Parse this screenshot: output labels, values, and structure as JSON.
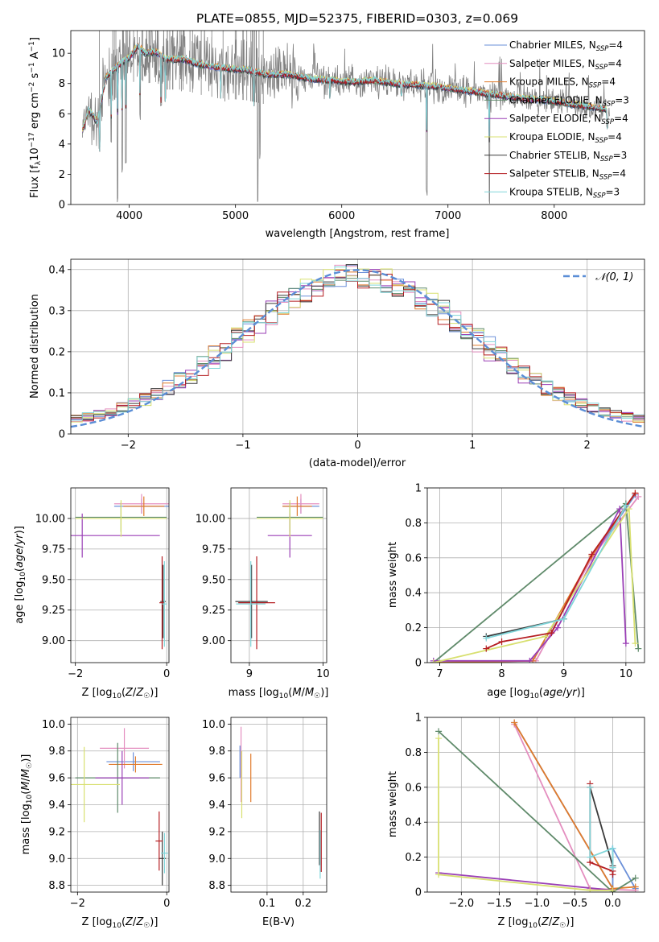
{
  "chart_data": [
    {
      "id": "spectrum",
      "type": "line",
      "title": "PLATE=0855, MJD=52375, FIBERID=0303, z=0.069",
      "xlabel": "wavelength [Angstrom, rest frame]",
      "ylabel_parts": [
        "Flux [f",
        "λ",
        "10",
        "−17",
        " erg cm",
        "−2",
        " s",
        "−1",
        " A",
        "−1",
        "]"
      ],
      "xlim": [
        3450,
        8850
      ],
      "ylim": [
        0,
        11.5
      ],
      "xticks": [
        4000,
        5000,
        6000,
        7000,
        8000
      ],
      "yticks": [
        0,
        2,
        4,
        6,
        8,
        10
      ],
      "grid": false,
      "legend_position": "right",
      "data_color": "#808080",
      "anchor_x": [
        3560,
        3620,
        3700,
        3780,
        3850,
        3930,
        4000,
        4080,
        4150,
        4250,
        4350,
        4500,
        4700,
        4900,
        5100,
        5300,
        5500,
        5700,
        5900,
        6100,
        6300,
        6500,
        6700,
        6900,
        7100,
        7300,
        7500,
        7700,
        7900,
        8100,
        8300,
        8500
      ],
      "anchor_y": [
        4.9,
        6.3,
        5.4,
        8.4,
        8.9,
        9.4,
        9.7,
        10.5,
        10.0,
        10.1,
        9.6,
        9.6,
        9.2,
        9.0,
        8.9,
        8.6,
        8.6,
        8.3,
        8.2,
        8.1,
        8.2,
        8.0,
        7.9,
        7.8,
        7.6,
        7.4,
        7.2,
        7.0,
        6.9,
        6.7,
        6.5,
        6.3
      ],
      "absorption_lines": [
        [
          3720,
          3.5
        ],
        [
          3830,
          4.0
        ],
        [
          3890,
          0.0
        ],
        [
          3933,
          2.0
        ],
        [
          3968,
          2.5
        ],
        [
          4101,
          5.5
        ],
        [
          4300,
          6.5
        ],
        [
          4340,
          6.8
        ],
        [
          4861,
          7.0
        ],
        [
          5175,
          6.5
        ],
        [
          5890,
          7.0
        ],
        [
          6563,
          7.2
        ],
        [
          6800,
          0.5
        ],
        [
          7390,
          0.0
        ],
        [
          8500,
          5.0
        ]
      ],
      "spikes": [
        [
          5210,
          0.0
        ],
        [
          5230,
          3.0
        ]
      ],
      "series": [
        {
          "name": "Chabrier MILES, N",
          "sub": "SSP",
          "suffix": "=4",
          "color": "#6a8fd8"
        },
        {
          "name": "Salpeter MILES, N",
          "sub": "SSP",
          "suffix": "=4",
          "color": "#e48ebf"
        },
        {
          "name": "Kroupa MILES, N",
          "sub": "SSP",
          "suffix": "=4",
          "color": "#e07b2c"
        },
        {
          "name": "Chabrier ELODIE, N",
          "sub": "SSP",
          "suffix": "=3",
          "color": "#5f8a6a"
        },
        {
          "name": "Salpeter ELODIE, N",
          "sub": "SSP",
          "suffix": "=4",
          "color": "#9a3fb6"
        },
        {
          "name": "Kroupa ELODIE, N",
          "sub": "SSP",
          "suffix": "=4",
          "color": "#d8e070"
        },
        {
          "name": "Chabrier STELIB, N",
          "sub": "SSP",
          "suffix": "=3",
          "color": "#3a3a3a"
        },
        {
          "name": "Salpeter STELIB, N",
          "sub": "SSP",
          "suffix": "=4",
          "color": "#b51e22"
        },
        {
          "name": "Kroupa STELIB, N",
          "sub": "SSP",
          "suffix": "=3",
          "color": "#80d6da"
        }
      ]
    },
    {
      "id": "residuals",
      "type": "line",
      "xlabel": "(data-model)/error",
      "ylabel": "Normed distribution",
      "xlim": [
        -2.5,
        2.5
      ],
      "ylim": [
        0,
        0.425
      ],
      "xticks": [
        -2,
        -1,
        0,
        1,
        2
      ],
      "yticks": [
        0.0,
        0.1,
        0.2,
        0.3,
        0.4
      ],
      "grid": true,
      "legend_position": "top-right",
      "legend_label": "𝒩(0, 1)",
      "gauss_color": "#5b8ed6",
      "bin_width": 0.1,
      "hist_colors": [
        "#6a8fd8",
        "#e48ebf",
        "#e07b2c",
        "#5f8a6a",
        "#9a3fb6",
        "#d8e070",
        "#3a3a3a",
        "#b51e22",
        "#80d6da"
      ]
    },
    {
      "id": "age-z",
      "type": "scatter",
      "xlabel": "Z [log10(Z/Z☉)]",
      "ylabel": "age  [log10(age/yr)]",
      "xlim": [
        -2.1,
        0.05
      ],
      "ylim": [
        8.82,
        10.25
      ],
      "xticks": [
        -2,
        0
      ],
      "yticks": [
        9.0,
        9.25,
        9.5,
        9.75,
        10.0
      ],
      "ytick_labels": [
        "9.00",
        "9.25",
        "9.50",
        "9.75",
        "10.00"
      ],
      "grid": true,
      "points": [
        {
          "c": "#6a8fd8",
          "x": -0.55,
          "xe": 0.6,
          "y": 10.1,
          "ye": 0.06
        },
        {
          "c": "#e48ebf",
          "x": -0.55,
          "xe": 0.6,
          "y": 10.12,
          "ye": 0.08
        },
        {
          "c": "#e07b2c",
          "x": -0.5,
          "xe": 0.45,
          "y": 10.1,
          "ye": 0.08
        },
        {
          "c": "#5f8a6a",
          "x": -1.0,
          "xe": 1.0,
          "y": 10.01,
          "ye": 0.12
        },
        {
          "c": "#9a3fb6",
          "x": -1.85,
          "xe": 1.7,
          "y": 9.86,
          "ye": 0.18
        },
        {
          "c": "#d8e070",
          "x": -1.0,
          "xe": 1.0,
          "y": 10.0,
          "ye": 0.15
        },
        {
          "c": "#3a3a3a",
          "x": -0.08,
          "xe": 0.06,
          "y": 9.32,
          "ye": 0.3
        },
        {
          "c": "#b51e22",
          "x": -0.1,
          "xe": 0.06,
          "y": 9.31,
          "ye": 0.38
        },
        {
          "c": "#80d6da",
          "x": -0.05,
          "xe": 0.05,
          "y": 9.3,
          "ye": 0.35
        }
      ]
    },
    {
      "id": "age-mass",
      "type": "scatter",
      "xlabel": "mass [log10(M/M☉)]",
      "xlim": [
        8.75,
        10.05
      ],
      "ylim": [
        8.82,
        10.25
      ],
      "xticks": [
        9,
        10
      ],
      "yticks": [
        9.0,
        9.25,
        9.5,
        9.75,
        10.0
      ],
      "ytick_labels": [
        "9.00",
        "9.25",
        "9.50",
        "9.75",
        "10.00"
      ],
      "grid": true,
      "points": [
        {
          "c": "#6a8fd8",
          "x": 9.7,
          "xe": 0.25,
          "y": 10.1,
          "ye": 0.06
        },
        {
          "c": "#e48ebf",
          "x": 9.7,
          "xe": 0.25,
          "y": 10.12,
          "ye": 0.08
        },
        {
          "c": "#e07b2c",
          "x": 9.65,
          "xe": 0.2,
          "y": 10.1,
          "ye": 0.08
        },
        {
          "c": "#5f8a6a",
          "x": 9.55,
          "xe": 0.45,
          "y": 10.01,
          "ye": 0.12
        },
        {
          "c": "#9a3fb6",
          "x": 9.55,
          "xe": 0.3,
          "y": 9.86,
          "ye": 0.18
        },
        {
          "c": "#d8e070",
          "x": 9.55,
          "xe": 0.45,
          "y": 10.0,
          "ye": 0.15
        },
        {
          "c": "#3a3a3a",
          "x": 9.03,
          "xe": 0.22,
          "y": 9.32,
          "ye": 0.3
        },
        {
          "c": "#b51e22",
          "x": 9.1,
          "xe": 0.25,
          "y": 9.31,
          "ye": 0.38
        },
        {
          "c": "#80d6da",
          "x": 9.02,
          "xe": 0.2,
          "y": 9.3,
          "ye": 0.35
        }
      ]
    },
    {
      "id": "weight-age",
      "type": "line",
      "xlabel": "age  [log10(age/yr)]",
      "ylabel": "mass weight",
      "xlim": [
        6.8,
        10.3
      ],
      "ylim": [
        0,
        1.0
      ],
      "xticks": [
        7,
        8,
        9,
        10
      ],
      "yticks": [
        0.0,
        0.2,
        0.4,
        0.6,
        0.8,
        1.0
      ],
      "grid": true,
      "series": [
        {
          "c": "#6a8fd8",
          "x": [
            6.9,
            8.5,
            9.45,
            10.15
          ],
          "y": [
            0.0,
            0.01,
            0.6,
            0.96
          ]
        },
        {
          "c": "#e48ebf",
          "x": [
            6.9,
            8.55,
            9.45,
            10.2
          ],
          "y": [
            0.0,
            0.01,
            0.6,
            0.95
          ]
        },
        {
          "c": "#e07b2c",
          "x": [
            6.9,
            8.5,
            9.45,
            10.15
          ],
          "y": [
            0.0,
            0.01,
            0.61,
            0.97
          ]
        },
        {
          "c": "#5f8a6a",
          "x": [
            6.9,
            10.0,
            10.2
          ],
          "y": [
            0.0,
            0.91,
            0.08
          ]
        },
        {
          "c": "#9a3fb6",
          "x": [
            6.9,
            8.45,
            8.9,
            9.9,
            10.0
          ],
          "y": [
            0.01,
            0.01,
            0.2,
            0.88,
            0.11
          ]
        },
        {
          "c": "#d8e070",
          "x": [
            6.9,
            8.7,
            10.05,
            10.15
          ],
          "y": [
            0.0,
            0.15,
            0.88,
            0.11
          ]
        },
        {
          "c": "#3a3a3a",
          "x": [
            7.75,
            9.0
          ],
          "y": [
            0.15,
            0.25
          ]
        },
        {
          "c": "#b51e22",
          "x": [
            7.75,
            8.0,
            8.8,
            9.45,
            10.15
          ],
          "y": [
            0.08,
            0.12,
            0.17,
            0.62,
            0.97
          ]
        },
        {
          "c": "#80d6da",
          "x": [
            7.75,
            9.0,
            10.0
          ],
          "y": [
            0.14,
            0.25,
            0.9
          ]
        }
      ]
    },
    {
      "id": "mass-z",
      "type": "scatter",
      "xlabel": "Z [log10(Z/Z☉)]",
      "ylabel": "mass [log10(M/M☉)]",
      "xlim": [
        -2.15,
        0.05
      ],
      "ylim": [
        8.75,
        10.05
      ],
      "xticks": [
        -2,
        0
      ],
      "yticks": [
        8.8,
        9.0,
        9.2,
        9.4,
        9.6,
        9.8,
        10.0
      ],
      "ytick_labels": [
        "8.8",
        "9.0",
        "9.2",
        "9.4",
        "9.6",
        "9.8",
        "10.0"
      ],
      "grid": true,
      "points": [
        {
          "c": "#6a8fd8",
          "x": -0.75,
          "xe": 0.6,
          "y": 9.72,
          "ye": 0.07
        },
        {
          "c": "#e48ebf",
          "x": -0.95,
          "xe": 0.55,
          "y": 9.82,
          "ye": 0.15
        },
        {
          "c": "#e07b2c",
          "x": -0.7,
          "xe": 0.6,
          "y": 9.7,
          "ye": 0.06
        },
        {
          "c": "#5f8a6a",
          "x": -1.1,
          "xe": 0.95,
          "y": 9.6,
          "ye": 0.26
        },
        {
          "c": "#9a3fb6",
          "x": -1.0,
          "xe": 0.6,
          "y": 9.6,
          "ye": 0.2
        },
        {
          "c": "#d8e070",
          "x": -1.85,
          "xe": 0.8,
          "y": 9.55,
          "ye": 0.28
        },
        {
          "c": "#3a3a3a",
          "x": -0.1,
          "xe": 0.08,
          "y": 9.0,
          "ye": 0.2
        },
        {
          "c": "#b51e22",
          "x": -0.17,
          "xe": 0.08,
          "y": 9.13,
          "ye": 0.22
        },
        {
          "c": "#80d6da",
          "x": -0.05,
          "xe": 0.08,
          "y": 9.04,
          "ye": 0.15
        }
      ]
    },
    {
      "id": "mass-ebv",
      "type": "scatter",
      "xlabel": "E(B-V)",
      "xlim": [
        0.0,
        0.265
      ],
      "ylim": [
        8.75,
        10.05
      ],
      "xticks": [
        0.1,
        0.2
      ],
      "yticks": [
        8.8,
        9.0,
        9.2,
        9.4,
        9.6,
        9.8,
        10.0
      ],
      "ytick_labels": [
        "8.8",
        "9.0",
        "9.2",
        "9.4",
        "9.6",
        "9.8",
        "10.0"
      ],
      "grid": true,
      "points": [
        {
          "c": "#6a8fd8",
          "x": 0.025,
          "xe": 0,
          "y": 9.72,
          "ye": 0.12
        },
        {
          "c": "#e48ebf",
          "x": 0.028,
          "xe": 0,
          "y": 9.7,
          "ye": 0.28
        },
        {
          "c": "#e07b2c",
          "x": 0.055,
          "xe": 0,
          "y": 9.6,
          "ye": 0.18
        },
        {
          "c": "#d8e070",
          "x": 0.03,
          "xe": 0,
          "y": 9.55,
          "ye": 0.25
        },
        {
          "c": "#3a3a3a",
          "x": 0.245,
          "xe": 0,
          "y": 9.15,
          "ye": 0.2
        },
        {
          "c": "#b51e22",
          "x": 0.25,
          "xe": 0,
          "y": 9.12,
          "ye": 0.22
        },
        {
          "c": "#80d6da",
          "x": 0.247,
          "xe": 0,
          "y": 9.03,
          "ye": 0.18
        }
      ]
    },
    {
      "id": "weight-z",
      "type": "line",
      "xlabel": "Z [log10(Z/Z☉)]",
      "ylabel": "mass weight",
      "xlim": [
        -2.45,
        0.42
      ],
      "ylim": [
        0,
        1.0
      ],
      "xticks": [
        -2.0,
        -1.5,
        -1.0,
        -0.5,
        0.0
      ],
      "xtick_labels": [
        "−2.0",
        "−1.5",
        "−1.0",
        "−0.5",
        "0.0"
      ],
      "yticks": [
        0.0,
        0.2,
        0.4,
        0.6,
        0.8,
        1.0
      ],
      "grid": true,
      "series": [
        {
          "c": "#6a8fd8",
          "x": [
            -1.3,
            0.0,
            0.0,
            0.3
          ],
          "y": [
            0.97,
            0.02,
            0.25,
            0.02
          ]
        },
        {
          "c": "#e48ebf",
          "x": [
            -1.3,
            -0.3,
            0.3
          ],
          "y": [
            0.96,
            0.02,
            0.01
          ]
        },
        {
          "c": "#e07b2c",
          "x": [
            -1.3,
            0.0,
            0.3
          ],
          "y": [
            0.97,
            0.02,
            0.03
          ]
        },
        {
          "c": "#5f8a6a",
          "x": [
            -2.3,
            0.0,
            0.3
          ],
          "y": [
            0.92,
            0.0,
            0.08
          ]
        },
        {
          "c": "#9a3fb6",
          "x": [
            -2.3,
            0.0
          ],
          "y": [
            0.11,
            0.01
          ]
        },
        {
          "c": "#d8e070",
          "x": [
            -2.3,
            -2.3,
            -0.3,
            0.0
          ],
          "y": [
            0.88,
            0.1,
            0.01,
            0.01
          ]
        },
        {
          "c": "#3a3a3a",
          "x": [
            -0.3,
            0.0
          ],
          "y": [
            0.6,
            0.15
          ]
        },
        {
          "c": "#b51e22",
          "x": [
            -0.3,
            -0.3,
            0.0,
            0.0
          ],
          "y": [
            0.62,
            0.17,
            0.12,
            0.1
          ]
        },
        {
          "c": "#80d6da",
          "x": [
            -0.3,
            -0.3,
            0.0,
            0.0
          ],
          "y": [
            0.6,
            0.2,
            0.25,
            0.14
          ]
        }
      ]
    }
  ]
}
